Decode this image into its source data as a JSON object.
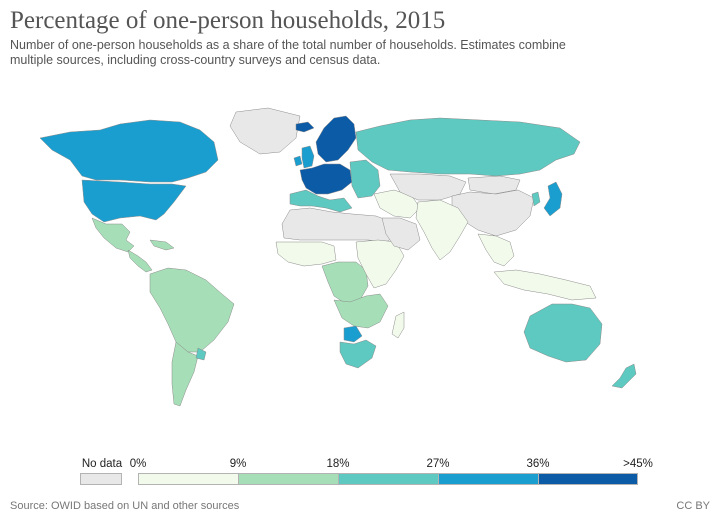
{
  "header": {
    "title": "Percentage of one-person households, 2015",
    "subtitle": "Number of one-person households as a share of the total number of households. Estimates combine multiple sources, including cross-country surveys and census data."
  },
  "legend": {
    "no_data_label": "No data",
    "no_data_color": "#e8e8e8",
    "bins": [
      {
        "label": "0%",
        "color": "#f2fbeb"
      },
      {
        "label": "9%",
        "color": "#a6dfb7"
      },
      {
        "label": "18%",
        "color": "#5dc9c0"
      },
      {
        "label": "27%",
        "color": "#1a9ecf"
      },
      {
        "label": "36%",
        "color": "#0c5ba6"
      }
    ],
    "end_label": ">45%"
  },
  "map": {
    "regions": [
      {
        "name": "greenland",
        "bin": "nodata"
      },
      {
        "name": "canada",
        "bin": 3
      },
      {
        "name": "usa",
        "bin": 3
      },
      {
        "name": "mexico",
        "bin": 1
      },
      {
        "name": "central-america",
        "bin": 1
      },
      {
        "name": "caribbean",
        "bin": 1
      },
      {
        "name": "south-america",
        "bin": 1
      },
      {
        "name": "argentina",
        "bin": 1
      },
      {
        "name": "uruguay",
        "bin": 2
      },
      {
        "name": "iceland",
        "bin": 4
      },
      {
        "name": "uk",
        "bin": 3
      },
      {
        "name": "ireland",
        "bin": 3
      },
      {
        "name": "scandinavia",
        "bin": 4
      },
      {
        "name": "western-europe",
        "bin": 4
      },
      {
        "name": "southern-europe",
        "bin": 2
      },
      {
        "name": "eastern-europe",
        "bin": 2
      },
      {
        "name": "russia",
        "bin": 2
      },
      {
        "name": "north-africa",
        "bin": "nodata"
      },
      {
        "name": "west-africa",
        "bin": 0
      },
      {
        "name": "central-africa",
        "bin": 1
      },
      {
        "name": "east-africa",
        "bin": 0
      },
      {
        "name": "southern-africa",
        "bin": 1
      },
      {
        "name": "south-africa",
        "bin": 2
      },
      {
        "name": "botswana",
        "bin": 3
      },
      {
        "name": "madagascar",
        "bin": 0
      },
      {
        "name": "middle-east",
        "bin": 0
      },
      {
        "name": "arabia",
        "bin": "nodata"
      },
      {
        "name": "central-asia",
        "bin": "nodata"
      },
      {
        "name": "india",
        "bin": 0
      },
      {
        "name": "china",
        "bin": "nodata"
      },
      {
        "name": "mongolia",
        "bin": "nodata"
      },
      {
        "name": "southeast-asia",
        "bin": 0
      },
      {
        "name": "indonesia",
        "bin": 0
      },
      {
        "name": "japan",
        "bin": 3
      },
      {
        "name": "korea",
        "bin": 2
      },
      {
        "name": "australia",
        "bin": 2
      },
      {
        "name": "new-zealand",
        "bin": 2
      },
      {
        "name": "antarctica-gap",
        "bin": "nodata"
      }
    ]
  },
  "footer": {
    "source": "Source: OWID based on UN and other sources",
    "license": "CC BY"
  }
}
